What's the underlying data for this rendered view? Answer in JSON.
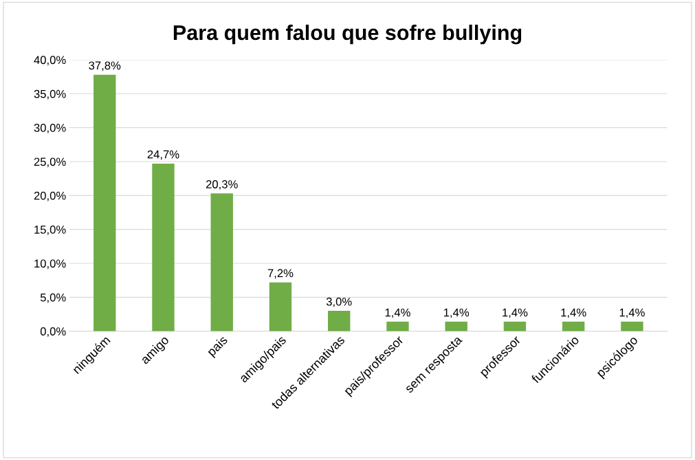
{
  "chart_data": {
    "type": "bar",
    "title": "Para quem falou que sofre bullying",
    "categories": [
      "ninguém",
      "amigo",
      "pais",
      "amigo/pais",
      "todas alternativas",
      "pais/professor",
      "sem resposta",
      "professor",
      "funcionário",
      "psicólogo"
    ],
    "values": [
      37.8,
      24.7,
      20.3,
      7.2,
      3.0,
      1.4,
      1.4,
      1.4,
      1.4,
      1.4
    ],
    "value_labels": [
      "37,8%",
      "24,7%",
      "20,3%",
      "7,2%",
      "3,0%",
      "1,4%",
      "1,4%",
      "1,4%",
      "1,4%",
      "1,4%"
    ],
    "color": "#70ad47",
    "ylim": [
      0,
      40
    ],
    "yticks": [
      {
        "value": 0,
        "label": "0,0%"
      },
      {
        "value": 5,
        "label": "5,0%"
      },
      {
        "value": 10,
        "label": "10,0%"
      },
      {
        "value": 15,
        "label": "15,0%"
      },
      {
        "value": 20,
        "label": "20,0%"
      },
      {
        "value": 25,
        "label": "25,0%"
      },
      {
        "value": 30,
        "label": "30,0%"
      },
      {
        "value": 35,
        "label": "35,0%"
      },
      {
        "value": 40,
        "label": "40,0%"
      }
    ],
    "grid": "y"
  }
}
